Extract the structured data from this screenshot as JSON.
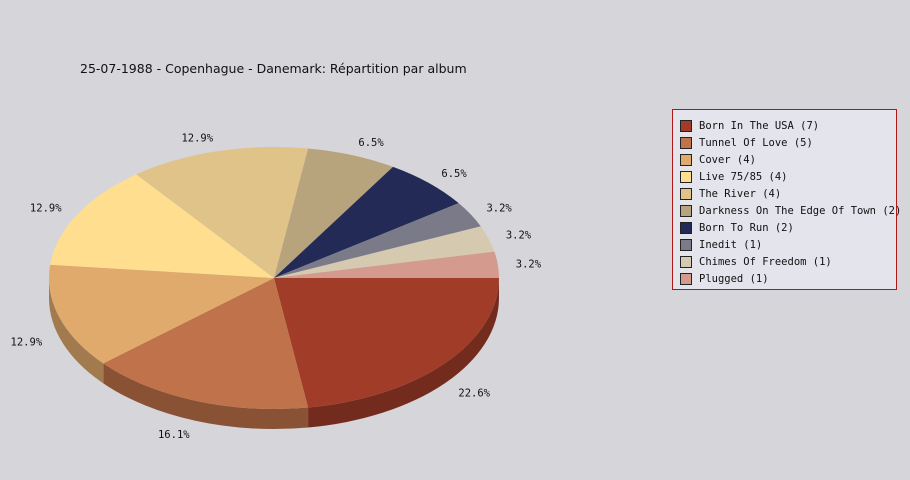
{
  "chart_data": {
    "type": "pie",
    "title": "25-07-1988 - Copenhague - Danemark:  Répartition par album",
    "legend_position": "right",
    "slices": [
      {
        "label": "Born In The USA (7)",
        "value": 7,
        "pct_label": "22.6%",
        "color": "#a03c28"
      },
      {
        "label": "Tunnel Of Love (5)",
        "value": 5,
        "pct_label": "16.1%",
        "color": "#c0724a"
      },
      {
        "label": "Cover (4)",
        "value": 4,
        "pct_label": "12.9%",
        "color": "#e0aa6c"
      },
      {
        "label": "Live 75/85 (4)",
        "value": 4,
        "pct_label": "12.9%",
        "color": "#ffdf8f"
      },
      {
        "label": "The River (4)",
        "value": 4,
        "pct_label": "12.9%",
        "color": "#dfc388"
      },
      {
        "label": "Darkness On The Edge Of Town (2)",
        "value": 2,
        "pct_label": "6.5%",
        "color": "#b8a47c"
      },
      {
        "label": "Born To Run (2)",
        "value": 2,
        "pct_label": "6.5%",
        "color": "#222a55"
      },
      {
        "label": "Inedit (1)",
        "value": 1,
        "pct_label": "3.2%",
        "color": "#7a7a88"
      },
      {
        "label": "Chimes Of Freedom (1)",
        "value": 1,
        "pct_label": "3.2%",
        "color": "#d5c9b0"
      },
      {
        "label": "Plugged (1)",
        "value": 1,
        "pct_label": "3.2%",
        "color": "#d49a8e"
      }
    ]
  }
}
